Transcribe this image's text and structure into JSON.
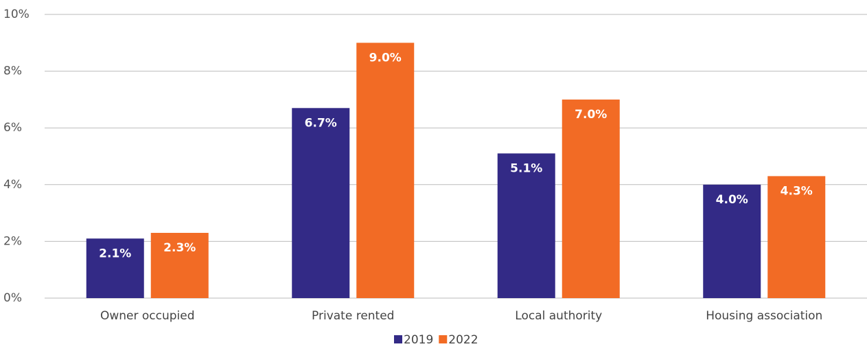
{
  "chart_data": {
    "type": "bar",
    "categories": [
      "Owner occupied",
      "Private rented",
      "Local authority",
      "Housing association"
    ],
    "series": [
      {
        "name": "2019",
        "color": "#332a86",
        "values": [
          2.1,
          6.7,
          5.1,
          4.0
        ],
        "value_labels": [
          "2.1%",
          "6.7%",
          "5.1%",
          "4.0%"
        ]
      },
      {
        "name": "2022",
        "color": "#f26b25",
        "values": [
          2.3,
          9.0,
          7.0,
          4.3
        ],
        "value_labels": [
          "2.3%",
          "9.0%",
          "7.0%",
          "4.3%"
        ]
      }
    ],
    "ylim": [
      0,
      10
    ],
    "yticks": [
      {
        "value": 0,
        "label": "0%"
      },
      {
        "value": 2,
        "label": "2%"
      },
      {
        "value": 4,
        "label": "4%"
      },
      {
        "value": 6,
        "label": "6%"
      },
      {
        "value": 8,
        "label": "8%"
      },
      {
        "value": 10,
        "label": "10%"
      }
    ],
    "grid": true,
    "legend": "bottom"
  }
}
